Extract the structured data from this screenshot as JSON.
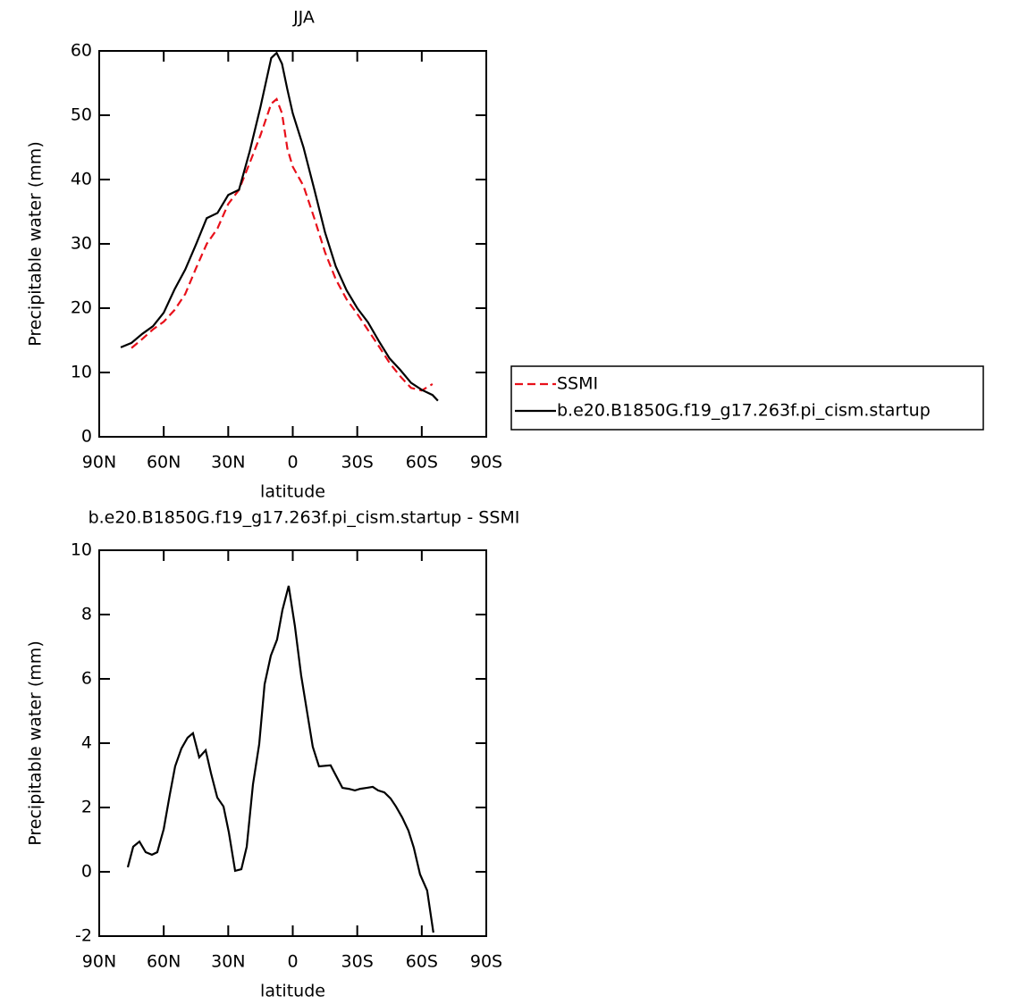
{
  "chart_data": [
    {
      "type": "line",
      "title": "JJA",
      "x_label": "latitude",
      "y_label": "Precipitable water (mm)",
      "x": [
        80,
        75,
        70,
        65,
        60,
        55,
        50,
        45,
        40,
        35,
        30,
        25,
        20,
        15,
        10,
        7.5,
        5,
        2.5,
        0,
        -5,
        -10,
        -15,
        -20,
        -25,
        -30,
        -35,
        -40,
        -45,
        -50,
        -55,
        -60,
        -65,
        -67.5
      ],
      "series": [
        {
          "name": "SSMI",
          "color": "#e8101a",
          "linestyle": "dashed",
          "values": [
            null,
            13.8,
            15.2,
            16.7,
            17.9,
            19.7,
            22.2,
            26.2,
            30.0,
            32.4,
            36.2,
            38.4,
            42.6,
            46.9,
            51.8,
            52.5,
            50.3,
            44.8,
            42.0,
            39.0,
            34.0,
            28.7,
            24.5,
            21.4,
            19.1,
            16.6,
            14.1,
            11.5,
            9.4,
            7.6,
            7.2,
            8.2,
            null
          ]
        },
        {
          "name": "b.e20.B1850G.f19_g17.263f.pi_cism.startup",
          "color": "#000000",
          "linestyle": "solid",
          "values": [
            13.9,
            14.6,
            16.0,
            17.2,
            19.3,
            22.9,
            26.0,
            29.9,
            34.0,
            34.8,
            37.6,
            38.4,
            44.4,
            51.3,
            58.9,
            59.7,
            58.0,
            54.0,
            50.3,
            45.0,
            38.5,
            31.8,
            26.5,
            22.8,
            20.0,
            17.8,
            14.9,
            12.2,
            10.4,
            8.4,
            7.3,
            6.5,
            5.6
          ]
        }
      ],
      "xlim": [
        90,
        -90
      ],
      "xticks": [
        {
          "value": 90,
          "label": "90N"
        },
        {
          "value": 60,
          "label": "60N"
        },
        {
          "value": 30,
          "label": "30N"
        },
        0,
        {
          "value": -30,
          "label": "30S"
        },
        {
          "value": -60,
          "label": "60S"
        },
        {
          "value": -90,
          "label": "90S"
        }
      ],
      "ylim": [
        0,
        60
      ],
      "yticks": [
        0,
        10,
        20,
        30,
        40,
        50,
        60
      ],
      "legend": true
    },
    {
      "type": "line",
      "title": "b.e20.B1850G.f19_g17.263f.pi_cism.startup - SSMI",
      "x_label": "latitude",
      "y_label": "Precipitable water (mm)",
      "x": [
        76.7,
        74.2,
        71.3,
        68.4,
        65.5,
        63,
        60,
        57.2,
        54.7,
        51.8,
        48.9,
        46.4,
        43.5,
        40.5,
        38,
        35.1,
        32.2,
        29.7,
        26.8,
        23.9,
        21.4,
        18.5,
        15.6,
        13.1,
        10.2,
        7.3,
        4.8,
        1.9,
        -1,
        -3.9,
        -6.4,
        -9.3,
        -12.2,
        -17.6,
        -23.1,
        -26,
        -28.9,
        -31.4,
        -34.3,
        -37.2,
        -39.7,
        -42.6,
        -45.5,
        -48,
        -50.9,
        -53.8,
        -56.3,
        -59.2,
        -62.5,
        -65.4
      ],
      "values": [
        0.14,
        0.78,
        0.94,
        0.61,
        0.53,
        0.61,
        1.33,
        2.39,
        3.28,
        3.83,
        4.17,
        4.31,
        3.56,
        3.78,
        3.06,
        2.31,
        2.03,
        1.22,
        0.03,
        0.08,
        0.78,
        2.72,
        3.97,
        5.83,
        6.72,
        7.22,
        8.14,
        8.89,
        7.64,
        6.11,
        5.08,
        3.89,
        3.28,
        3.31,
        2.61,
        2.58,
        2.53,
        2.58,
        2.61,
        2.64,
        2.53,
        2.47,
        2.28,
        2.03,
        1.69,
        1.28,
        0.75,
        -0.08,
        -0.58,
        -1.89
      ],
      "color": "#000000",
      "xlim": [
        90,
        -90
      ],
      "xticks": [
        {
          "value": 90,
          "label": "90N"
        },
        {
          "value": 60,
          "label": "60N"
        },
        {
          "value": 30,
          "label": "30N"
        },
        0,
        {
          "value": -30,
          "label": "30S"
        },
        {
          "value": -60,
          "label": "60S"
        },
        {
          "value": -90,
          "label": "90S"
        }
      ],
      "ylim": [
        -2,
        10
      ],
      "yticks": [
        -2,
        0,
        2,
        4,
        6,
        8,
        10
      ]
    }
  ]
}
